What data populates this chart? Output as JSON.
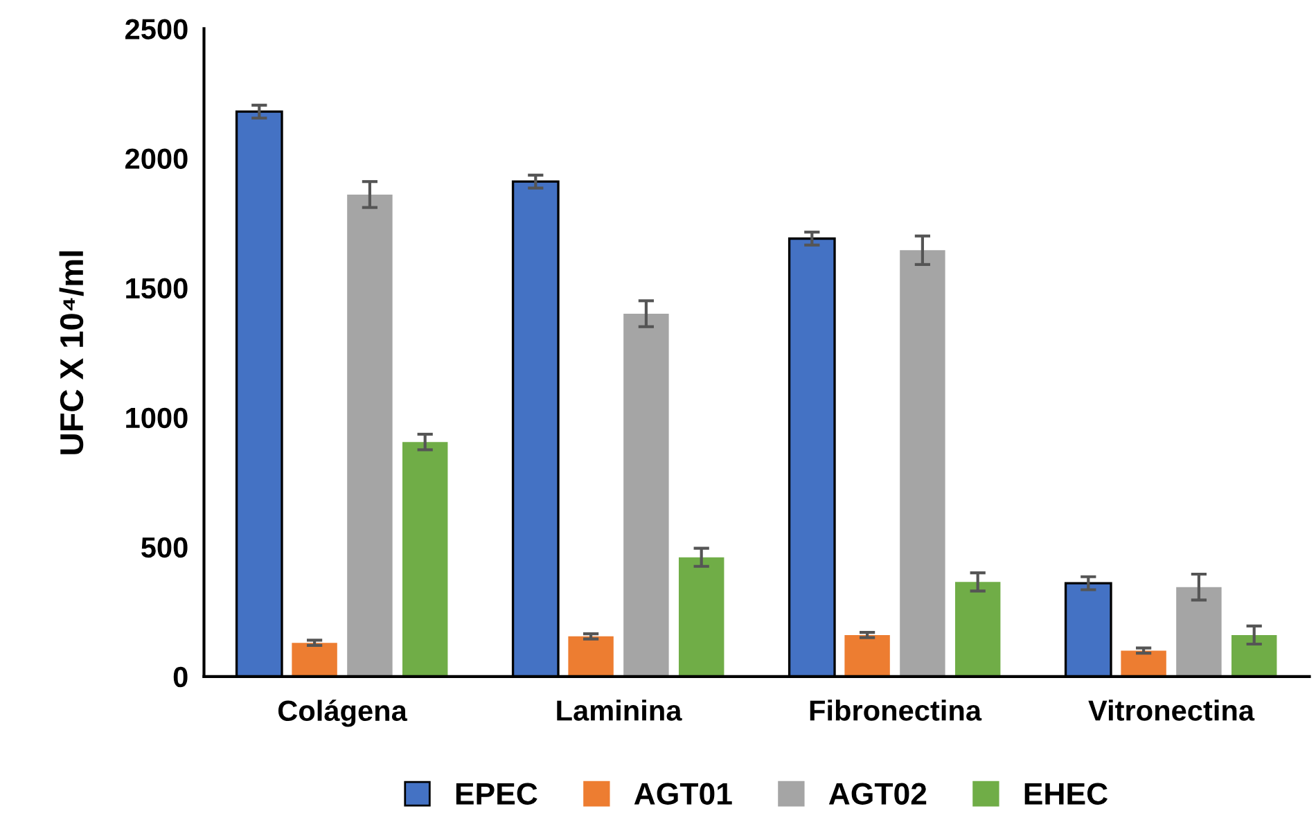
{
  "chart_data": {
    "type": "bar",
    "ylabel": "UFC X 10⁴/ml",
    "categories": [
      "Colágena",
      "Laminina",
      "Fibronectina",
      "Vitronectina"
    ],
    "series": [
      {
        "name": "EPEC",
        "color": "#4472c4",
        "values": [
          2180,
          1910,
          1690,
          360
        ],
        "errors": [
          25,
          25,
          25,
          25
        ]
      },
      {
        "name": "AGT01",
        "color": "#ed7d31",
        "values": [
          130,
          155,
          160,
          100
        ],
        "errors": [
          10,
          10,
          10,
          10
        ]
      },
      {
        "name": "AGT02",
        "color": "#a5a5a5",
        "values": [
          1860,
          1400,
          1645,
          345
        ],
        "errors": [
          50,
          50,
          55,
          50
        ]
      },
      {
        "name": "EHEC",
        "color": "#70ad47",
        "values": [
          905,
          460,
          365,
          160
        ],
        "errors": [
          30,
          35,
          35,
          35
        ]
      }
    ],
    "ylim": [
      0,
      2500
    ],
    "yticks": [
      0,
      500,
      1000,
      1500,
      2000,
      2500
    ],
    "grid": false,
    "legend": "bottom"
  }
}
